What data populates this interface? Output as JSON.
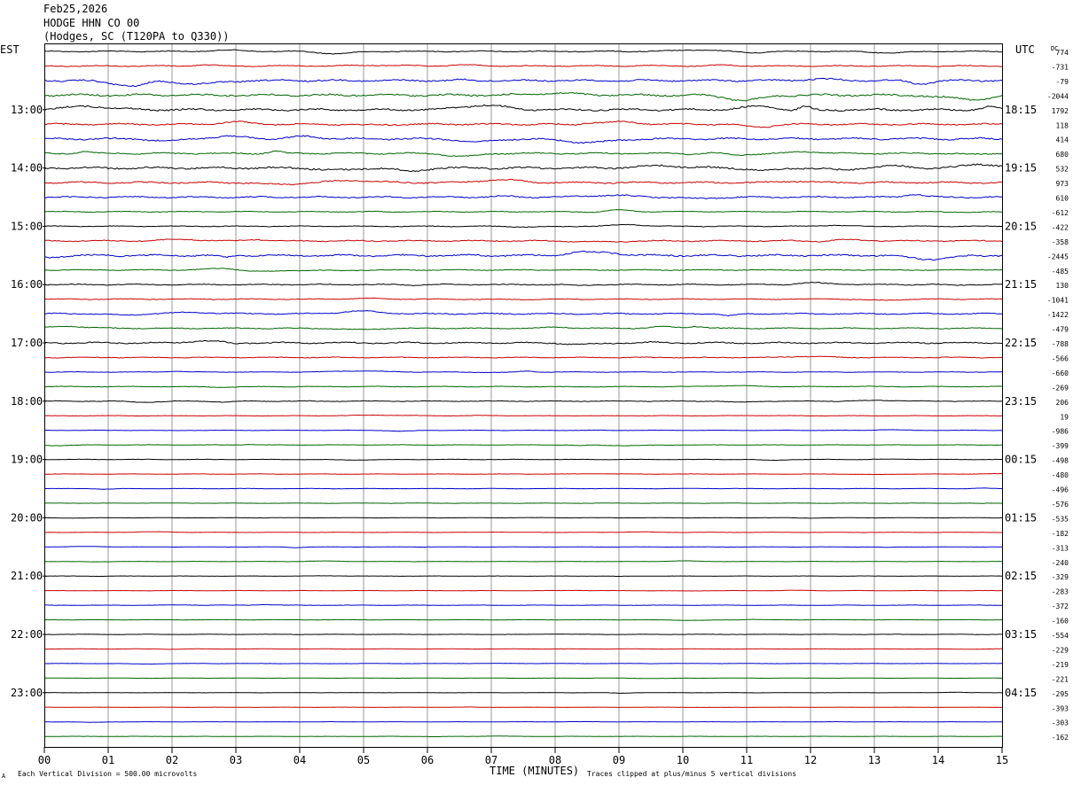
{
  "header": {
    "date": "Feb25,2026",
    "station": "HODGE HHN CO 00",
    "location": "(Hodges, SC (T120PA to Q330))"
  },
  "left_axis_label": "EST",
  "right_axis_label": "UTC",
  "dc_label": "DC",
  "footer": {
    "scale_note": "Each Vertical Division =  500.00 microvolts",
    "clip_note": "Traces clipped at plus/minus 5 vertical divisions",
    "mark": "A"
  },
  "chart_data": {
    "type": "line",
    "subtype": "helicorder seismogram",
    "xlabel": "TIME (MINUTES)",
    "x_ticks": [
      "00",
      "01",
      "02",
      "03",
      "04",
      "05",
      "06",
      "07",
      "08",
      "09",
      "10",
      "11",
      "12",
      "13",
      "14",
      "15"
    ],
    "xlim": [
      0,
      15
    ],
    "trace_colors": [
      "#000000",
      "#cc0000",
      "#0000cc",
      "#006600"
    ],
    "left_time_labels": [
      "13:00",
      "14:00",
      "15:00",
      "16:00",
      "17:00",
      "18:00",
      "19:00",
      "20:00",
      "21:00",
      "22:00",
      "23:00"
    ],
    "right_time_labels": [
      "18:15",
      "19:15",
      "20:15",
      "21:15",
      "22:15",
      "23:15",
      "00:15",
      "01:15",
      "02:15",
      "03:15",
      "04:15"
    ],
    "dc_offsets": [
      "774",
      "-731",
      "-79",
      "-2044",
      "1792",
      "118",
      "414",
      "680",
      "532",
      "973",
      "610",
      "-612",
      "-422",
      "-358",
      "-2445",
      "-485",
      "130",
      "-1041",
      "-1422",
      "-479",
      "-788",
      "-566",
      "-660",
      "-269",
      "206",
      "19",
      "-986",
      "-399",
      "-498",
      "-480",
      "-496",
      "-576",
      "-535",
      "-182",
      "-313",
      "-240",
      "-329",
      "-283",
      "-372",
      "-160",
      "-554",
      "-229",
      "-219",
      "-221",
      "-295",
      "-393",
      "-303",
      "-162"
    ],
    "trace_activity": [
      0.5,
      0.5,
      0.9,
      1.0,
      1.0,
      0.8,
      0.9,
      0.7,
      1.0,
      0.8,
      0.7,
      0.4,
      0.4,
      0.6,
      0.9,
      0.4,
      0.5,
      0.4,
      0.6,
      0.5,
      0.7,
      0.4,
      0.25,
      0.3,
      0.35,
      0.2,
      0.2,
      0.2,
      0.2,
      0.15,
      0.15,
      0.15,
      0.15,
      0.15,
      0.15,
      0.15,
      0.15,
      0.15,
      0.18,
      0.12,
      0.15,
      0.12,
      0.12,
      0.12,
      0.12,
      0.12,
      0.12,
      0.12
    ]
  }
}
